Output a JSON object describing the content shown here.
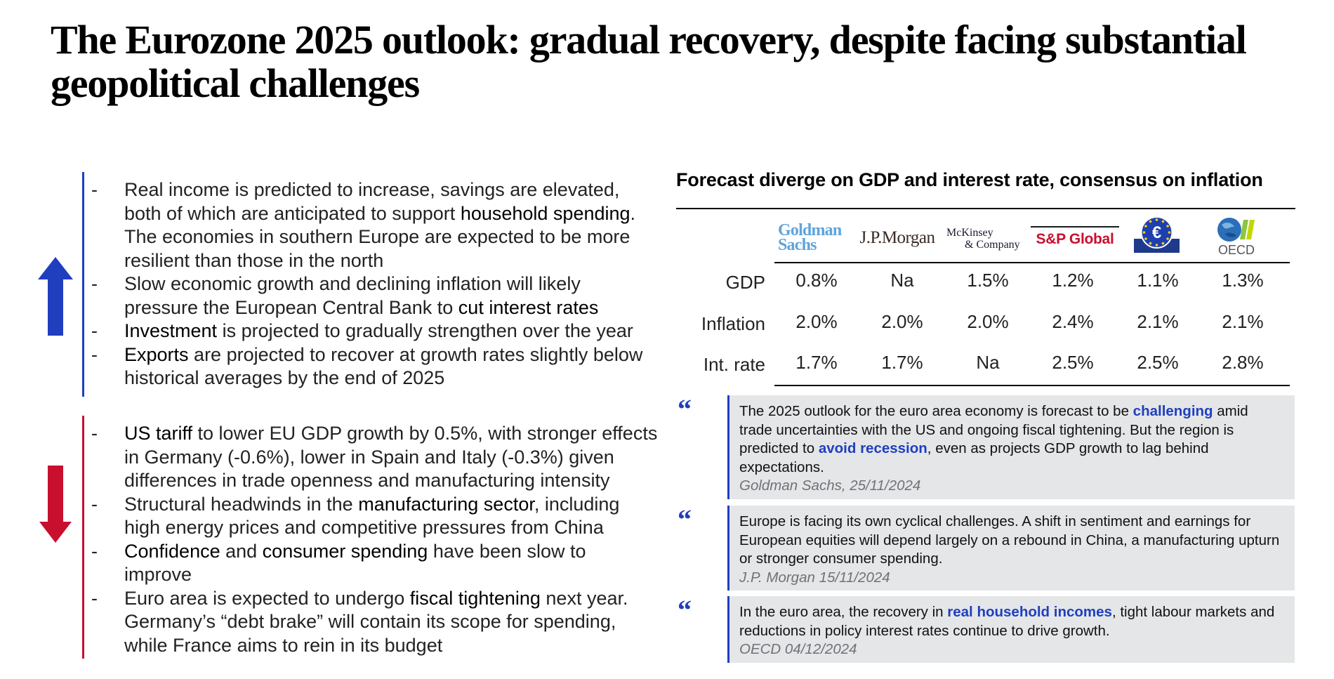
{
  "title": "The Eurozone 2025 outlook: gradual recovery, despite facing substantial geopolitical challenges",
  "bullet_dash": "-",
  "positive": {
    "icon": "up-arrow-icon",
    "color": "#1f3fbf",
    "items": [
      {
        "pre": "Real income is predicted to increase, savings are elevated, both of which are anticipated to support ",
        "bold": "household spending",
        "post": ". The economies in southern Europe are expected to be more resilient than those in the north"
      },
      {
        "pre": "Slow economic growth and declining inflation will likely pressure the European Central Bank to ",
        "bold": "cut interest rates",
        "post": ""
      },
      {
        "pre": "",
        "bold": "Investment",
        "post": " is projected to gradually strengthen over the year"
      },
      {
        "pre": "",
        "bold": "Exports",
        "post": " are projected to recover at growth rates slightly below historical averages by the end of 2025"
      }
    ]
  },
  "negative": {
    "icon": "down-arrow-icon",
    "color": "#c8102e",
    "items": [
      {
        "pre": "",
        "bold": "US tariff",
        "post": " to lower EU GDP growth by 0.5%, with stronger effects in Germany (-0.6%), lower in Spain and Italy (-0.3%) given differences in trade openness and manufacturing intensity"
      },
      {
        "pre": "Structural headwinds in the ",
        "bold": "manufacturing sector",
        "post": ", including high energy prices and competitive pressures from China"
      },
      {
        "pre": "",
        "bold": "Confidence",
        "mid": " and ",
        "bold2": "consumer spending",
        "post": " have been slow to improve"
      },
      {
        "pre": "Euro area is expected to undergo ",
        "bold": "fiscal tightening",
        "post": " next year. Germany’s “debt brake” will contain its scope for spending, while France aims to rein in its budget"
      }
    ]
  },
  "forecast": {
    "title": "Forecast diverge on GDP and interest rate, consensus on inflation",
    "logos": {
      "goldman_line1": "Goldman",
      "goldman_line2": "Sachs",
      "jpmorgan": "J.P.Morgan",
      "mckinsey_line1": "McKinsey",
      "mckinsey_line2": "& Company",
      "sp": "S&P Global",
      "ecb_symbol": "€",
      "oecd": "OECD"
    },
    "rows": [
      {
        "label": "GDP",
        "values": [
          "0.8%",
          "Na",
          "1.5%",
          "1.2%",
          "1.1%",
          "1.3%"
        ]
      },
      {
        "label": "Inflation",
        "values": [
          "2.0%",
          "2.0%",
          "2.0%",
          "2.4%",
          "2.1%",
          "2.1%"
        ]
      },
      {
        "label": "Int. rate",
        "values": [
          "1.7%",
          "1.7%",
          "Na",
          "2.5%",
          "2.5%",
          "2.8%"
        ]
      }
    ]
  },
  "quotes": [
    {
      "mark": "“",
      "t1": "The 2025 outlook for the euro area economy is forecast to be ",
      "b1": "challenging",
      "t2": " amid trade uncertainties with the US and ongoing fiscal tightening. But the region is predicted to ",
      "b2": "avoid recession",
      "t3": ", even as projects GDP growth to lag behind expectations.",
      "source": "Goldman Sachs, 25/11/2024"
    },
    {
      "mark": "“",
      "t1": "Europe is facing its own cyclical challenges. A shift in sentiment and earnings for European equities will depend largely on a rebound in China, a manufacturing upturn or stronger consumer spending.",
      "source": "J.P. Morgan 15/11/2024"
    },
    {
      "mark": "“",
      "t1": "In the euro area, the recovery in ",
      "b1": "real household incomes",
      "t2": ", tight labour markets and reductions in policy interest rates continue to drive growth.",
      "source": "OECD 04/12/2024"
    }
  ]
}
